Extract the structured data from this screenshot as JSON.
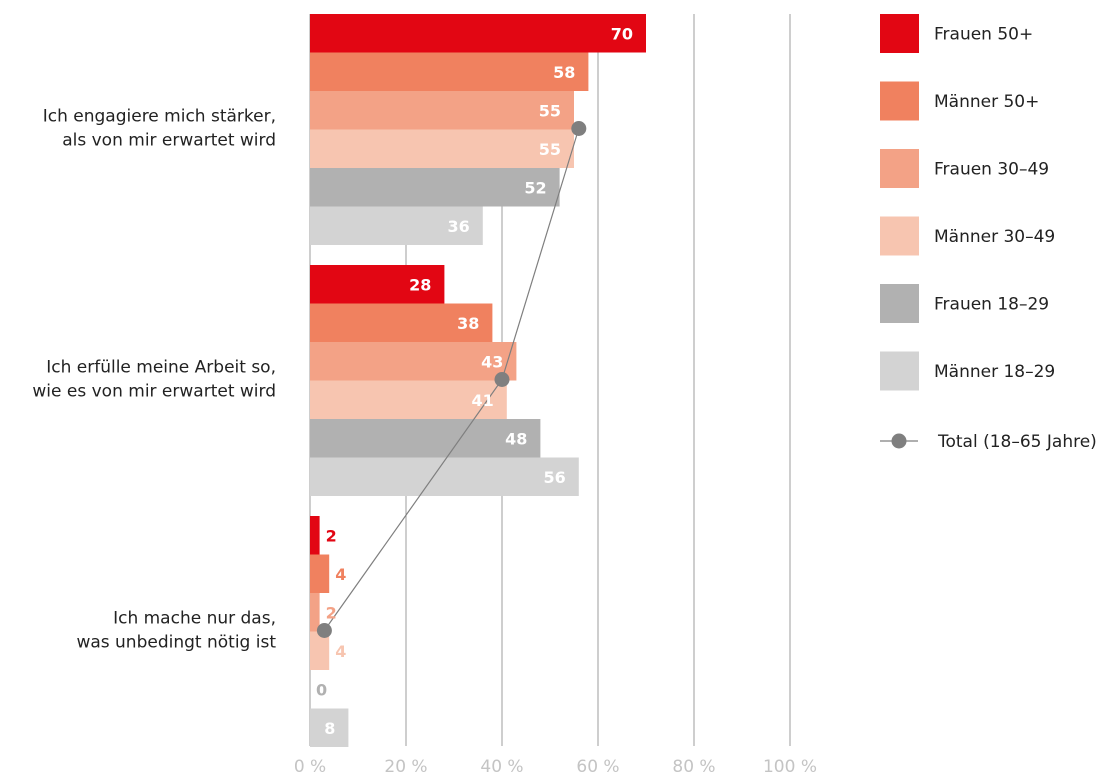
{
  "chart_data": {
    "type": "bar",
    "orientation": "horizontal",
    "categories": [
      [
        "Ich engagiere mich stärker,",
        "als von mir erwartet wird"
      ],
      [
        "Ich erfülle meine Arbeit so,",
        "wie es von mir erwartet wird"
      ],
      [
        "Ich mache nur das,",
        "was unbedingt nötig ist"
      ]
    ],
    "series": [
      {
        "name": "Frauen 50+",
        "color": "#e20613",
        "values": [
          70,
          28,
          2
        ]
      },
      {
        "name": "Männer 50+",
        "color": "#f0815f",
        "values": [
          58,
          38,
          4
        ]
      },
      {
        "name": "Frauen 30–49",
        "color": "#f3a286",
        "values": [
          55,
          43,
          2
        ]
      },
      {
        "name": "Männer 30–49",
        "color": "#f7c5b0",
        "values": [
          55,
          41,
          4
        ]
      },
      {
        "name": "Frauen 18–29",
        "color": "#b1b1b1",
        "values": [
          52,
          48,
          0
        ]
      },
      {
        "name": "Männer 18–29",
        "color": "#d3d3d3",
        "values": [
          36,
          56,
          8
        ]
      }
    ],
    "total": {
      "name": "Total (18–65 Jahre)",
      "color": "#7f7f7f",
      "values": [
        56,
        40,
        3
      ]
    },
    "x_ticks": [
      "0 %",
      "20 %",
      "40 %",
      "60 %",
      "80 %",
      "100 %"
    ],
    "xlim": [
      0,
      100
    ],
    "grid": true,
    "legend_position": "right"
  }
}
